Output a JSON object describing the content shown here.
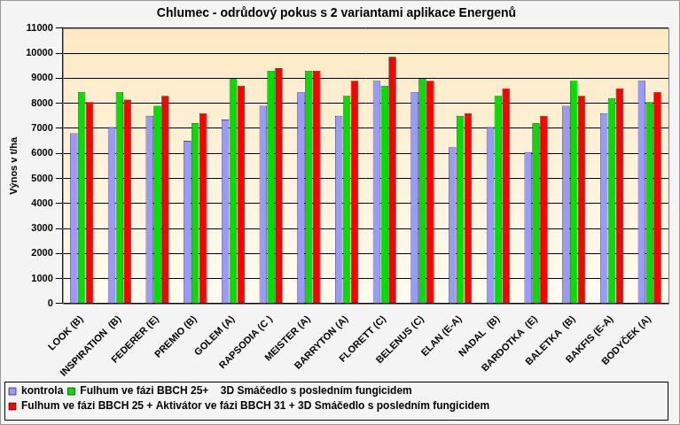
{
  "chart_data": {
    "type": "bar",
    "title": "Chlumec - odrůdový pokus s 2 variantami aplikace Energenů",
    "y_label": "Výnos v t/ha",
    "categories": [
      "LOOK (B)",
      "INSPIRATION  (B)",
      "FEDERER (E)",
      "PREMIO (B)",
      "GOLEM (A)",
      "RAPSODIA (C )",
      "MEISTER (A)",
      "BARRYTON (A)",
      "FLORETT (C)",
      "BELENUS (C)",
      "ELAN (E-A)",
      "NADAL  (B)",
      "BARDOTKA  (E)",
      "BALETKA  (B)",
      "BAKFIS (E-A)",
      "BODYČEK (A)"
    ],
    "series": [
      {
        "name": "kontrola",
        "color": "#9999ff",
        "values": [
          6800,
          7050,
          7500,
          6500,
          7350,
          7900,
          8450,
          7500,
          8900,
          8450,
          6250,
          7050,
          6050,
          7900,
          7600,
          8900
        ]
      },
      {
        "name": "Fulhum ve fázi BBCH 25+    3D Smáčedlo s posledním fungicidem",
        "color": "#00e000",
        "values": [
          8450,
          8450,
          7900,
          7200,
          9000,
          9300,
          9300,
          8300,
          8700,
          9000,
          7500,
          8300,
          7200,
          8900,
          8200,
          8050
        ]
      },
      {
        "name": "Fulhum ve fázi BBCH 25 + Aktivátor ve fázi BBCH 31 + 3D Smáčedlo s posledním fungicidem",
        "color": "#ff0000",
        "values": [
          8050,
          8150,
          8300,
          7600,
          8700,
          9400,
          9300,
          8900,
          9850,
          8900,
          7600,
          8600,
          7500,
          8300,
          8600,
          8450
        ]
      }
    ],
    "ylim": [
      0,
      11000
    ],
    "yticks": [
      0,
      1000,
      2000,
      3000,
      4000,
      5000,
      6000,
      7000,
      8000,
      9000,
      10000,
      11000
    ],
    "grid": true,
    "legend": "bottom"
  }
}
